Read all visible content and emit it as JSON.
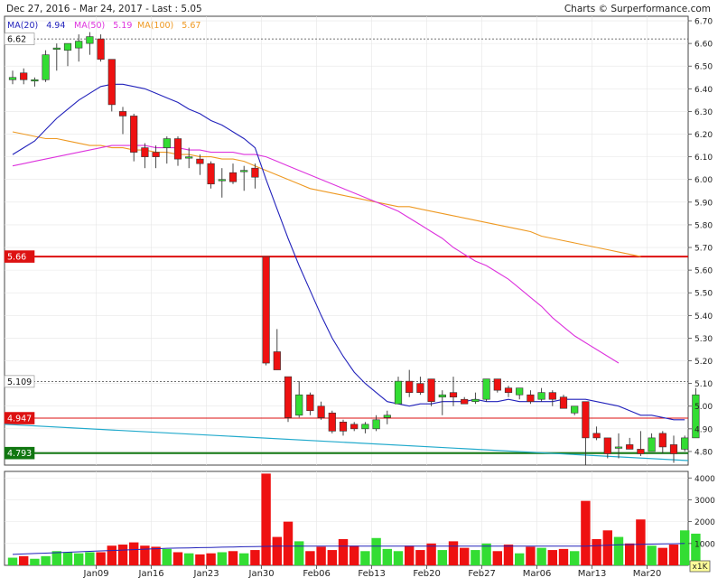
{
  "header": {
    "date_range": "Dec 27, 2016 - Mar 24, 2017 - Last : 5.05",
    "credit": "Charts © Surperformance.com",
    "ma20_label": "MA(20)",
    "ma20_value": "4.94",
    "ma50_label": "MA(50)",
    "ma50_value": "5.19",
    "ma100_label": "MA(100)",
    "ma100_value": "5.67"
  },
  "colors": {
    "up": "#33dd33",
    "down": "#ee1111",
    "ma20": "#2222bb",
    "ma50": "#dd33dd",
    "ma100": "#ee9922",
    "trend": "#22aacc",
    "support": "#117711",
    "resistance": "#dd1111"
  },
  "volume_unit": "x1K",
  "chart_data": {
    "type": "candlestick",
    "title": "",
    "x_tick_labels": [
      "Jan09",
      "Jan16",
      "Jan23",
      "Jan30",
      "Feb06",
      "Feb13",
      "Feb20",
      "Feb27",
      "Mar06",
      "Mar13",
      "Mar20"
    ],
    "x_tick_index": [
      8,
      13,
      18,
      23,
      28,
      33,
      38,
      43,
      48,
      53,
      58
    ],
    "y_ticks": [
      4.8,
      4.9,
      5.0,
      5.1,
      5.2,
      5.3,
      5.4,
      5.5,
      5.6,
      5.7,
      5.8,
      5.9,
      6.0,
      6.1,
      6.2,
      6.3,
      6.4,
      6.5,
      6.6,
      6.7
    ],
    "y_tick_labels": [
      "4.80",
      "4.90",
      "5.00",
      "5.10",
      "5.20",
      "5.30",
      "5.40",
      "5.50",
      "5.60",
      "5.70",
      "5.80",
      "5.90",
      "6.00",
      "6.10",
      "6.20",
      "6.30",
      "6.40",
      "6.50",
      "6.60",
      "6.70"
    ],
    "ylim": [
      4.74,
      6.72
    ],
    "volume_ticks": [
      1000,
      2000,
      3000,
      4000
    ],
    "volume_tick_labels": [
      "1000",
      "2000",
      "3000",
      "4000"
    ],
    "volume_ylim": [
      0,
      4300
    ],
    "candles": [
      {
        "o": 6.44,
        "h": 6.48,
        "l": 6.42,
        "c": 6.45,
        "v": 350
      },
      {
        "o": 6.47,
        "h": 6.49,
        "l": 6.42,
        "c": 6.44,
        "v": 420
      },
      {
        "o": 6.44,
        "h": 6.45,
        "l": 6.41,
        "c": 6.44,
        "v": 300
      },
      {
        "o": 6.44,
        "h": 6.57,
        "l": 6.43,
        "c": 6.55,
        "v": 420
      },
      {
        "o": 6.58,
        "h": 6.6,
        "l": 6.48,
        "c": 6.58,
        "v": 650
      },
      {
        "o": 6.57,
        "h": 6.6,
        "l": 6.5,
        "c": 6.6,
        "v": 600
      },
      {
        "o": 6.58,
        "h": 6.64,
        "l": 6.52,
        "c": 6.61,
        "v": 550
      },
      {
        "o": 6.6,
        "h": 6.65,
        "l": 6.55,
        "c": 6.63,
        "v": 600
      },
      {
        "o": 6.62,
        "h": 6.64,
        "l": 6.52,
        "c": 6.53,
        "v": 600
      },
      {
        "o": 6.53,
        "h": 6.53,
        "l": 6.3,
        "c": 6.33,
        "v": 900
      },
      {
        "o": 6.3,
        "h": 6.32,
        "l": 6.2,
        "c": 6.28,
        "v": 950
      },
      {
        "o": 6.28,
        "h": 6.29,
        "l": 6.08,
        "c": 6.12,
        "v": 1050
      },
      {
        "o": 6.14,
        "h": 6.16,
        "l": 6.05,
        "c": 6.1,
        "v": 900
      },
      {
        "o": 6.12,
        "h": 6.15,
        "l": 6.05,
        "c": 6.1,
        "v": 850
      },
      {
        "o": 6.14,
        "h": 6.19,
        "l": 6.07,
        "c": 6.18,
        "v": 750
      },
      {
        "o": 6.18,
        "h": 6.19,
        "l": 6.06,
        "c": 6.09,
        "v": 600
      },
      {
        "o": 6.1,
        "h": 6.14,
        "l": 6.05,
        "c": 6.1,
        "v": 550
      },
      {
        "o": 6.09,
        "h": 6.11,
        "l": 6.02,
        "c": 6.07,
        "v": 500
      },
      {
        "o": 6.07,
        "h": 6.08,
        "l": 5.96,
        "c": 5.98,
        "v": 550
      },
      {
        "o": 6.0,
        "h": 6.05,
        "l": 5.92,
        "c": 6.0,
        "v": 600
      },
      {
        "o": 6.03,
        "h": 6.07,
        "l": 5.98,
        "c": 5.99,
        "v": 650
      },
      {
        "o": 6.04,
        "h": 6.06,
        "l": 5.95,
        "c": 6.04,
        "v": 550
      },
      {
        "o": 6.05,
        "h": 6.07,
        "l": 5.96,
        "c": 6.01,
        "v": 700
      },
      {
        "o": 5.66,
        "h": 5.66,
        "l": 5.18,
        "c": 5.19,
        "v": 4200
      },
      {
        "o": 5.24,
        "h": 5.34,
        "l": 5.16,
        "c": 5.16,
        "v": 1300
      },
      {
        "o": 5.13,
        "h": 5.13,
        "l": 4.93,
        "c": 4.95,
        "v": 2000
      },
      {
        "o": 4.96,
        "h": 5.11,
        "l": 4.95,
        "c": 5.05,
        "v": 1100
      },
      {
        "o": 5.05,
        "h": 5.06,
        "l": 4.96,
        "c": 4.98,
        "v": 650
      },
      {
        "o": 5.0,
        "h": 5.02,
        "l": 4.94,
        "c": 4.95,
        "v": 850
      },
      {
        "o": 4.97,
        "h": 4.98,
        "l": 4.88,
        "c": 4.89,
        "v": 700
      },
      {
        "o": 4.93,
        "h": 4.94,
        "l": 4.87,
        "c": 4.89,
        "v": 1200
      },
      {
        "o": 4.92,
        "h": 4.93,
        "l": 4.89,
        "c": 4.9,
        "v": 900
      },
      {
        "o": 4.9,
        "h": 4.93,
        "l": 4.88,
        "c": 4.92,
        "v": 650
      },
      {
        "o": 4.9,
        "h": 4.96,
        "l": 4.89,
        "c": 4.94,
        "v": 1250
      },
      {
        "o": 4.95,
        "h": 4.98,
        "l": 4.92,
        "c": 4.96,
        "v": 750
      },
      {
        "o": 5.01,
        "h": 5.13,
        "l": 5.01,
        "c": 5.11,
        "v": 650
      },
      {
        "o": 5.11,
        "h": 5.16,
        "l": 5.04,
        "c": 5.06,
        "v": 900
      },
      {
        "o": 5.1,
        "h": 5.13,
        "l": 5.05,
        "c": 5.06,
        "v": 700
      },
      {
        "o": 5.12,
        "h": 5.12,
        "l": 5.0,
        "c": 5.02,
        "v": 1000
      },
      {
        "o": 5.04,
        "h": 5.07,
        "l": 4.96,
        "c": 5.05,
        "v": 700
      },
      {
        "o": 5.06,
        "h": 5.13,
        "l": 5.0,
        "c": 5.04,
        "v": 1100
      },
      {
        "o": 5.03,
        "h": 5.04,
        "l": 5.01,
        "c": 5.01,
        "v": 800
      },
      {
        "o": 5.02,
        "h": 5.06,
        "l": 5.01,
        "c": 5.03,
        "v": 700
      },
      {
        "o": 5.03,
        "h": 5.12,
        "l": 5.02,
        "c": 5.12,
        "v": 1000
      },
      {
        "o": 5.12,
        "h": 5.12,
        "l": 5.06,
        "c": 5.07,
        "v": 650
      },
      {
        "o": 5.08,
        "h": 5.09,
        "l": 5.04,
        "c": 5.06,
        "v": 950
      },
      {
        "o": 5.05,
        "h": 5.08,
        "l": 5.03,
        "c": 5.08,
        "v": 550
      },
      {
        "o": 5.05,
        "h": 5.07,
        "l": 5.01,
        "c": 5.02,
        "v": 850
      },
      {
        "o": 5.03,
        "h": 5.08,
        "l": 5.02,
        "c": 5.06,
        "v": 800
      },
      {
        "o": 5.06,
        "h": 5.07,
        "l": 5.0,
        "c": 5.03,
        "v": 700
      },
      {
        "o": 5.04,
        "h": 5.05,
        "l": 4.99,
        "c": 4.99,
        "v": 750
      },
      {
        "o": 4.97,
        "h": 5.0,
        "l": 4.96,
        "c": 5.0,
        "v": 650
      },
      {
        "o": 5.02,
        "h": 5.02,
        "l": 4.74,
        "c": 4.86,
        "v": 2950
      },
      {
        "o": 4.88,
        "h": 4.91,
        "l": 4.85,
        "c": 4.86,
        "v": 1200
      },
      {
        "o": 4.86,
        "h": 4.86,
        "l": 4.77,
        "c": 4.79,
        "v": 1600
      },
      {
        "o": 4.82,
        "h": 4.88,
        "l": 4.77,
        "c": 4.82,
        "v": 1300
      },
      {
        "o": 4.83,
        "h": 4.86,
        "l": 4.81,
        "c": 4.81,
        "v": 1000
      },
      {
        "o": 4.81,
        "h": 4.89,
        "l": 4.78,
        "c": 4.79,
        "v": 2100
      },
      {
        "o": 4.8,
        "h": 4.88,
        "l": 4.8,
        "c": 4.86,
        "v": 900
      },
      {
        "o": 4.88,
        "h": 4.89,
        "l": 4.79,
        "c": 4.82,
        "v": 800
      },
      {
        "o": 4.83,
        "h": 4.87,
        "l": 4.75,
        "c": 4.79,
        "v": 950
      },
      {
        "o": 4.81,
        "h": 4.87,
        "l": 4.8,
        "c": 4.86,
        "v": 1600
      },
      {
        "o": 4.86,
        "h": 5.08,
        "l": 4.86,
        "c": 5.05,
        "v": 1450
      }
    ],
    "ma20": [
      6.11,
      6.14,
      6.17,
      6.22,
      6.27,
      6.31,
      6.35,
      6.38,
      6.41,
      6.42,
      6.42,
      6.41,
      6.4,
      6.38,
      6.36,
      6.34,
      6.31,
      6.29,
      6.26,
      6.24,
      6.21,
      6.18,
      6.14,
      6.0,
      5.87,
      5.74,
      5.62,
      5.51,
      5.4,
      5.3,
      5.22,
      5.15,
      5.1,
      5.06,
      5.02,
      5.01,
      5.0,
      5.01,
      5.01,
      5.02,
      5.02,
      5.02,
      5.03,
      5.02,
      5.02,
      5.03,
      5.02,
      5.02,
      5.02,
      5.02,
      5.03,
      5.03,
      5.03,
      5.02,
      5.01,
      5.0,
      4.98,
      4.96,
      4.96,
      4.95,
      4.94,
      4.94
    ],
    "ma50": [
      6.06,
      6.07,
      6.08,
      6.09,
      6.1,
      6.11,
      6.12,
      6.13,
      6.14,
      6.15,
      6.15,
      6.15,
      6.15,
      6.14,
      6.14,
      6.14,
      6.13,
      6.13,
      6.12,
      6.12,
      6.12,
      6.11,
      6.11,
      6.1,
      6.08,
      6.06,
      6.04,
      6.02,
      6.0,
      5.98,
      5.96,
      5.94,
      5.92,
      5.9,
      5.88,
      5.86,
      5.83,
      5.8,
      5.77,
      5.74,
      5.7,
      5.67,
      5.64,
      5.62,
      5.59,
      5.56,
      5.52,
      5.48,
      5.44,
      5.39,
      5.35,
      5.31,
      5.28,
      5.25,
      5.22,
      5.19
    ],
    "ma100": [
      6.21,
      6.2,
      6.19,
      6.18,
      6.18,
      6.17,
      6.16,
      6.15,
      6.15,
      6.14,
      6.14,
      6.13,
      6.13,
      6.12,
      6.12,
      6.11,
      6.11,
      6.1,
      6.1,
      6.09,
      6.09,
      6.08,
      6.06,
      6.04,
      6.02,
      6.0,
      5.98,
      5.96,
      5.95,
      5.94,
      5.93,
      5.92,
      5.91,
      5.9,
      5.89,
      5.88,
      5.88,
      5.87,
      5.86,
      5.85,
      5.84,
      5.83,
      5.82,
      5.81,
      5.8,
      5.79,
      5.78,
      5.77,
      5.75,
      5.74,
      5.73,
      5.72,
      5.71,
      5.7,
      5.69,
      5.68,
      5.67,
      5.66
    ],
    "volume_avg": [
      500,
      520,
      540,
      560,
      580,
      600,
      620,
      640,
      660,
      680,
      700,
      720,
      740,
      760,
      780,
      790,
      800,
      810,
      820,
      830,
      840,
      850,
      860,
      870,
      880,
      880,
      880,
      880,
      880,
      880,
      880,
      880,
      880,
      880,
      880,
      880,
      880,
      880,
      880,
      880,
      880,
      880,
      880,
      880,
      880,
      880,
      880,
      880,
      880,
      880,
      880,
      880,
      880,
      900,
      920,
      940,
      950,
      960,
      970,
      980,
      990,
      1000
    ],
    "levels": [
      {
        "label": "6.62",
        "value": 6.62,
        "style": "dotted"
      },
      {
        "label": "5.66",
        "value": 5.66,
        "style": "solid-red"
      },
      {
        "label": "5.109",
        "value": 5.109,
        "style": "dotted"
      },
      {
        "label": "4.947",
        "value": 4.947,
        "style": "solid-red-thin"
      },
      {
        "label": "4.793",
        "value": 4.793,
        "style": "solid-green"
      }
    ],
    "trendline": {
      "from_index": 0,
      "from_value": 4.92,
      "to_index": 62,
      "to_value": 4.76
    }
  }
}
